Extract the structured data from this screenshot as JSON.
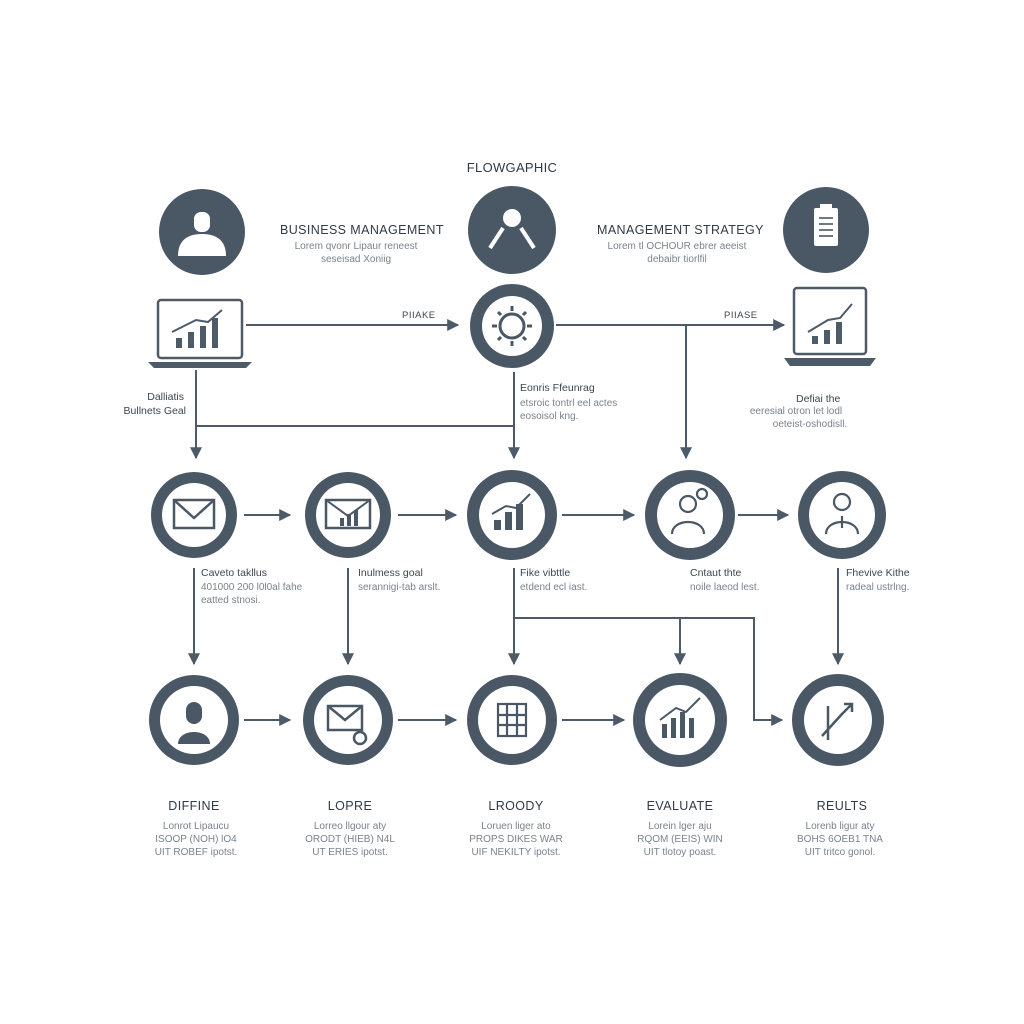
{
  "diagram": {
    "title": "FLOWGAPHIC",
    "colors": {
      "primary": "#4a5866",
      "line": "#4d5a67",
      "text": "#2f3b46",
      "muted": "#7a838c"
    },
    "top_section": {
      "left_heading": "BUSINESS MANAGEMENT",
      "left_sub_1": "Lorem qvonr Lipaur reneest",
      "left_sub_2": "seseisad Xoniig",
      "right_heading": "MANAGEMENT STRATEGY",
      "right_sub_1": "Lorem tl OCHOUR ebrer aeeist",
      "right_sub_2": "debaibr tiorlfil",
      "icons": [
        "user-icon",
        "gear-hands-icon",
        "clipboard-icon"
      ]
    },
    "middle_row": {
      "phase_left": "PIIAKE",
      "phase_right": "PIIASE",
      "left_label_1": "Dalliatis",
      "left_label_2": "Bullnets Geal",
      "center_label": "Eonris Ffeunrag",
      "center_sub_1": "etsroic tontrl eel actes",
      "center_sub_2": "eosoisol kng.",
      "right_label": "Defiai the",
      "right_sub_1": "eeresial otron let lodl",
      "right_sub_2": "oeteist-oshodisll.",
      "icons": [
        "laptop-chart-icon",
        "gear-icon",
        "laptop-chart-icon"
      ]
    },
    "row2": [
      {
        "icon": "envelope-icon",
        "label": "Caveto takllus",
        "sub_1": "401000 200 l0l0al fahe",
        "sub_2": "eatted stnosi."
      },
      {
        "icon": "envelope-chart-icon",
        "label": "Inulmess goal",
        "sub_1": "serannigi-tab arslt.",
        "sub_2": ""
      },
      {
        "icon": "bar-chart-icon",
        "label": "Fike vibttle",
        "sub_1": "etdend ecl iast.",
        "sub_2": ""
      },
      {
        "icon": "person-badge-icon",
        "label": "Cntaut thte",
        "sub_1": "noile laeod lest.",
        "sub_2": ""
      },
      {
        "icon": "person-tie-icon",
        "label": "Fhevive Kithe",
        "sub_1": "radeal ustrlng.",
        "sub_2": ""
      }
    ],
    "row3": [
      {
        "icon": "woman-icon",
        "heading": "DIFFINE",
        "sub_1": "Lonrot Lipaucu",
        "sub_2": "ISOOP (NOH) lO4",
        "sub_3": "UIT ROBEF ipotst."
      },
      {
        "icon": "envelope-at-icon",
        "heading": "LOPRE",
        "sub_1": "Lorreo llgour aty",
        "sub_2": "ORODT (HIEB) N4L",
        "sub_3": "UT ERIES ipotst."
      },
      {
        "icon": "grid-icon",
        "heading": "LROODY",
        "sub_1": "Loruen liger ato",
        "sub_2": "PROPS DIKES WAR",
        "sub_3": "UIF NEKILTY ipotst."
      },
      {
        "icon": "growth-chart-icon",
        "heading": "EVALUATE",
        "sub_1": "Lorein lger aju",
        "sub_2": "RQOM (EEIS) WIN",
        "sub_3": "UIT tlotoy poast."
      },
      {
        "icon": "growth-arrow-icon",
        "heading": "REULTS",
        "sub_1": "Lorenb ligur aty",
        "sub_2": "BOHS 6OEB1 TNA",
        "sub_3": "UIT tritco gonol."
      }
    ]
  }
}
